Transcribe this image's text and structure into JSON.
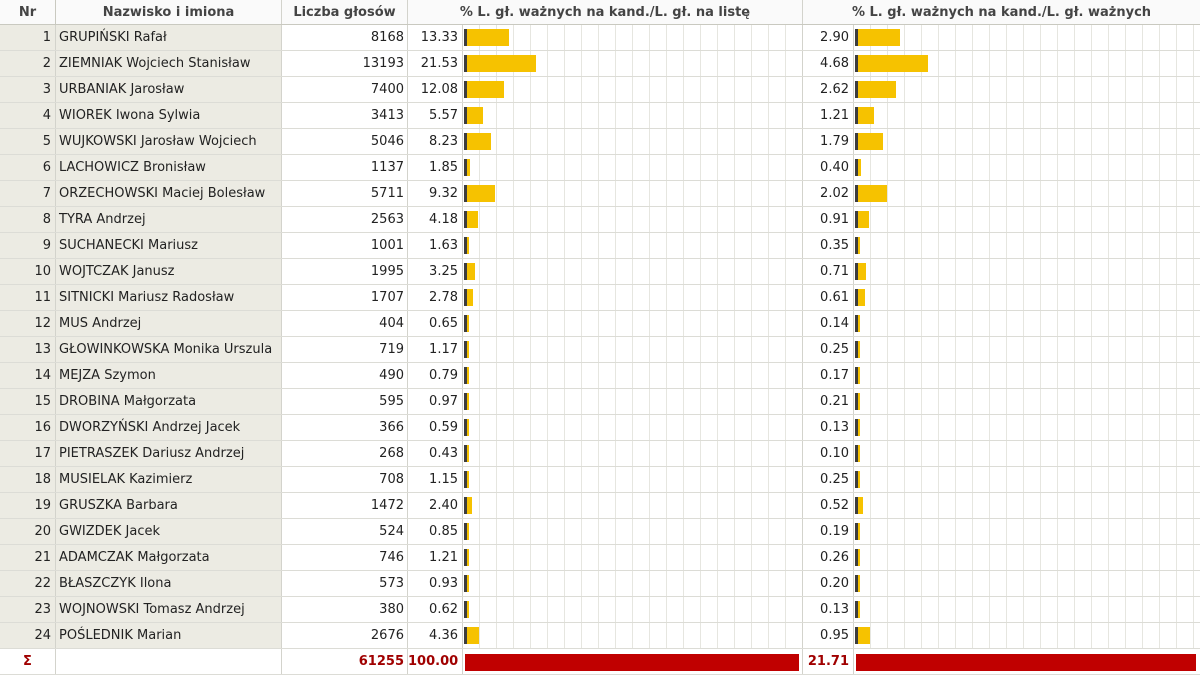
{
  "headers": {
    "nr": "Nr",
    "name": "Nazwisko i imiona",
    "votes": "Liczba głosów",
    "pct_list": "% L. gł. ważnych na kand./L. gł. na listę",
    "pct_valid": "% L. gł. ważnych na kand./L. gł. ważnych"
  },
  "colors": {
    "bar": "#f6c200",
    "bar_marker": "#3d3d3d",
    "sum_bar": "#c00000",
    "sum_text": "#a00000"
  },
  "scale": {
    "pct_list_max_full_width": 100,
    "pct_valid_max_full_width": 21.71
  },
  "rows": [
    {
      "nr": "1",
      "name": "GRUPIŃSKI Rafał",
      "votes": "8168",
      "pct_list": "13.33",
      "pct_valid": "2.90"
    },
    {
      "nr": "2",
      "name": "ZIEMNIAK Wojciech Stanisław",
      "votes": "13193",
      "pct_list": "21.53",
      "pct_valid": "4.68"
    },
    {
      "nr": "3",
      "name": "URBANIAK Jarosław",
      "votes": "7400",
      "pct_list": "12.08",
      "pct_valid": "2.62"
    },
    {
      "nr": "4",
      "name": "WIOREK Iwona Sylwia",
      "votes": "3413",
      "pct_list": "5.57",
      "pct_valid": "1.21"
    },
    {
      "nr": "5",
      "name": "WUJKOWSKI Jarosław Wojciech",
      "votes": "5046",
      "pct_list": "8.23",
      "pct_valid": "1.79"
    },
    {
      "nr": "6",
      "name": "LACHOWICZ Bronisław",
      "votes": "1137",
      "pct_list": "1.85",
      "pct_valid": "0.40"
    },
    {
      "nr": "7",
      "name": "ORZECHOWSKI Maciej Bolesław",
      "votes": "5711",
      "pct_list": "9.32",
      "pct_valid": "2.02"
    },
    {
      "nr": "8",
      "name": "TYRA Andrzej",
      "votes": "2563",
      "pct_list": "4.18",
      "pct_valid": "0.91"
    },
    {
      "nr": "9",
      "name": "SUCHANECKI Mariusz",
      "votes": "1001",
      "pct_list": "1.63",
      "pct_valid": "0.35"
    },
    {
      "nr": "10",
      "name": "WOJTCZAK Janusz",
      "votes": "1995",
      "pct_list": "3.25",
      "pct_valid": "0.71"
    },
    {
      "nr": "11",
      "name": "SITNICKI Mariusz Radosław",
      "votes": "1707",
      "pct_list": "2.78",
      "pct_valid": "0.61"
    },
    {
      "nr": "12",
      "name": "MUS Andrzej",
      "votes": "404",
      "pct_list": "0.65",
      "pct_valid": "0.14"
    },
    {
      "nr": "13",
      "name": "GŁOWINKOWSKA Monika Urszula",
      "votes": "719",
      "pct_list": "1.17",
      "pct_valid": "0.25"
    },
    {
      "nr": "14",
      "name": "MEJZA Szymon",
      "votes": "490",
      "pct_list": "0.79",
      "pct_valid": "0.17"
    },
    {
      "nr": "15",
      "name": "DROBINA Małgorzata",
      "votes": "595",
      "pct_list": "0.97",
      "pct_valid": "0.21"
    },
    {
      "nr": "16",
      "name": "DWORZYŃSKI Andrzej Jacek",
      "votes": "366",
      "pct_list": "0.59",
      "pct_valid": "0.13"
    },
    {
      "nr": "17",
      "name": "PIETRASZEK Dariusz Andrzej",
      "votes": "268",
      "pct_list": "0.43",
      "pct_valid": "0.10"
    },
    {
      "nr": "18",
      "name": "MUSIELAK Kazimierz",
      "votes": "708",
      "pct_list": "1.15",
      "pct_valid": "0.25"
    },
    {
      "nr": "19",
      "name": "GRUSZKA Barbara",
      "votes": "1472",
      "pct_list": "2.40",
      "pct_valid": "0.52"
    },
    {
      "nr": "20",
      "name": "GWIZDEK Jacek",
      "votes": "524",
      "pct_list": "0.85",
      "pct_valid": "0.19"
    },
    {
      "nr": "21",
      "name": "ADAMCZAK Małgorzata",
      "votes": "746",
      "pct_list": "1.21",
      "pct_valid": "0.26"
    },
    {
      "nr": "22",
      "name": "BŁASZCZYK Ilona",
      "votes": "573",
      "pct_list": "0.93",
      "pct_valid": "0.20"
    },
    {
      "nr": "23",
      "name": "WOJNOWSKI Tomasz Andrzej",
      "votes": "380",
      "pct_list": "0.62",
      "pct_valid": "0.13"
    },
    {
      "nr": "24",
      "name": "POŚLEDNIK Marian",
      "votes": "2676",
      "pct_list": "4.36",
      "pct_valid": "0.95"
    }
  ],
  "summary": {
    "symbol": "Σ",
    "votes": "61255",
    "pct_list": "100.00",
    "pct_valid": "21.71"
  }
}
